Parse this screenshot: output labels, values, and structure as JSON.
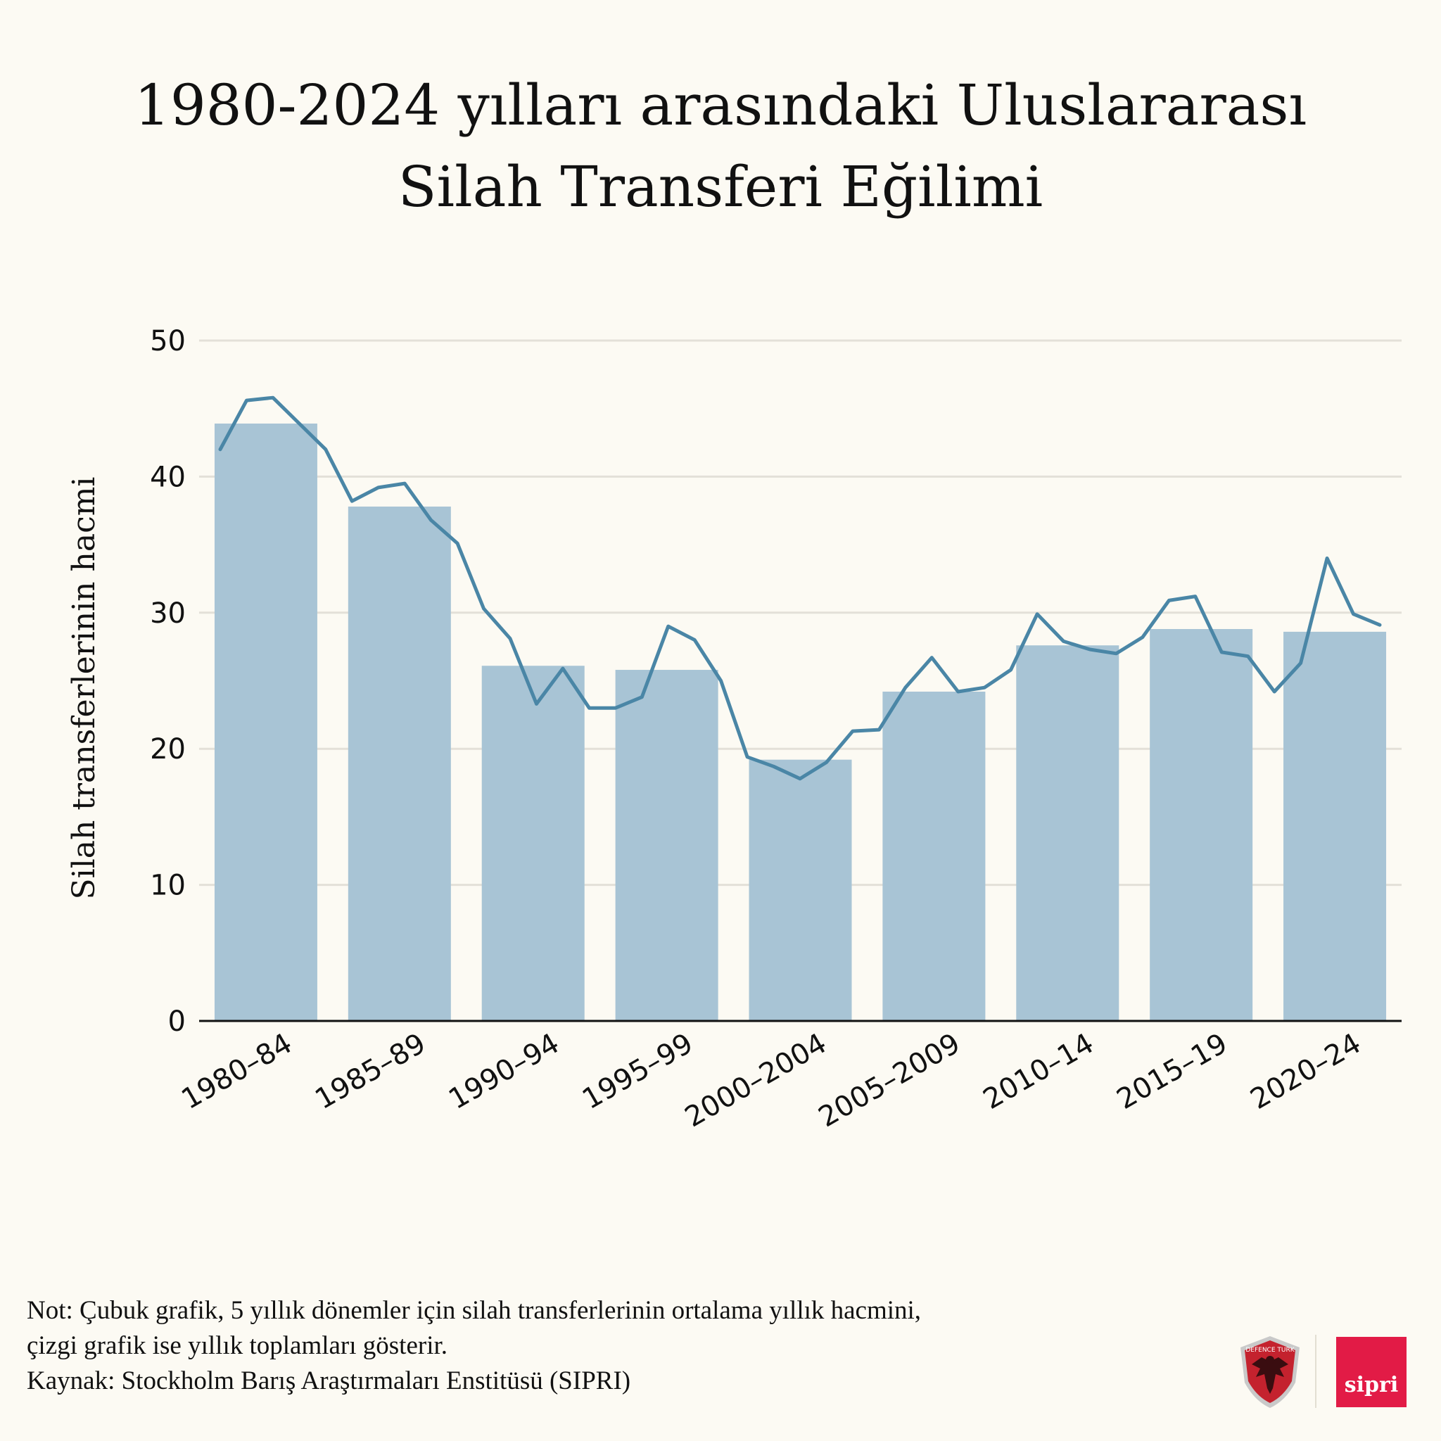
{
  "title": {
    "line1": "1980-2024 yılları arasındaki Uluslararası",
    "line2": "Silah Transferi Eğilimi"
  },
  "chart_data": {
    "type": "bar",
    "title": "1980-2024 yılları arasındaki Uluslararası Silah Transferi Eğilimi",
    "ylabel": "Silah transferlerinin hacmi",
    "xlabel": "",
    "ylim": [
      0,
      50
    ],
    "yticks": [
      0,
      10,
      20,
      30,
      40,
      50
    ],
    "grid": true,
    "categories": [
      "1980–84",
      "1985–89",
      "1990–94",
      "1995–99",
      "2000–2004",
      "2005–2009",
      "2010–14",
      "2015–19",
      "2020–24"
    ],
    "bar_values": [
      43.9,
      37.8,
      26.1,
      25.8,
      19.2,
      24.2,
      27.6,
      28.8,
      28.6
    ],
    "bar_color": "#a8c4d5",
    "line": {
      "x": [
        1980,
        1981,
        1982,
        1983,
        1984,
        1985,
        1986,
        1987,
        1988,
        1989,
        1990,
        1991,
        1992,
        1993,
        1994,
        1995,
        1996,
        1997,
        1998,
        1999,
        2000,
        2001,
        2002,
        2003,
        2004,
        2005,
        2006,
        2007,
        2008,
        2009,
        2010,
        2011,
        2012,
        2013,
        2014,
        2015,
        2016,
        2017,
        2018,
        2019,
        2020,
        2021,
        2022,
        2023,
        2024
      ],
      "values": [
        42.0,
        45.6,
        45.8,
        43.9,
        42.0,
        38.2,
        39.2,
        39.5,
        36.8,
        35.1,
        30.3,
        28.1,
        23.3,
        25.9,
        23.0,
        23.0,
        23.8,
        29.0,
        28.0,
        25.0,
        19.4,
        18.7,
        17.8,
        19.0,
        21.3,
        21.4,
        24.5,
        26.7,
        24.2,
        24.5,
        25.8,
        29.9,
        27.9,
        27.3,
        27.0,
        28.2,
        30.9,
        31.2,
        27.1,
        26.8,
        24.2,
        26.3,
        34.0,
        29.9,
        29.1
      ],
      "color": "#4a86a6"
    }
  },
  "footer": {
    "note_line1": "Not: Çubuk grafik, 5 yıllık dönemler için silah transferlerinin ortalama yıllık hacmini,",
    "note_line2": "çizgi grafik ise yıllık toplamları gösterir.",
    "source": "Kaynak: Stockholm Barış Araştırmaları Enstitüsü (SIPRI)"
  },
  "logos": {
    "defence_turk_text": "DEFENCE TURK",
    "sipri_text": "sipri"
  }
}
